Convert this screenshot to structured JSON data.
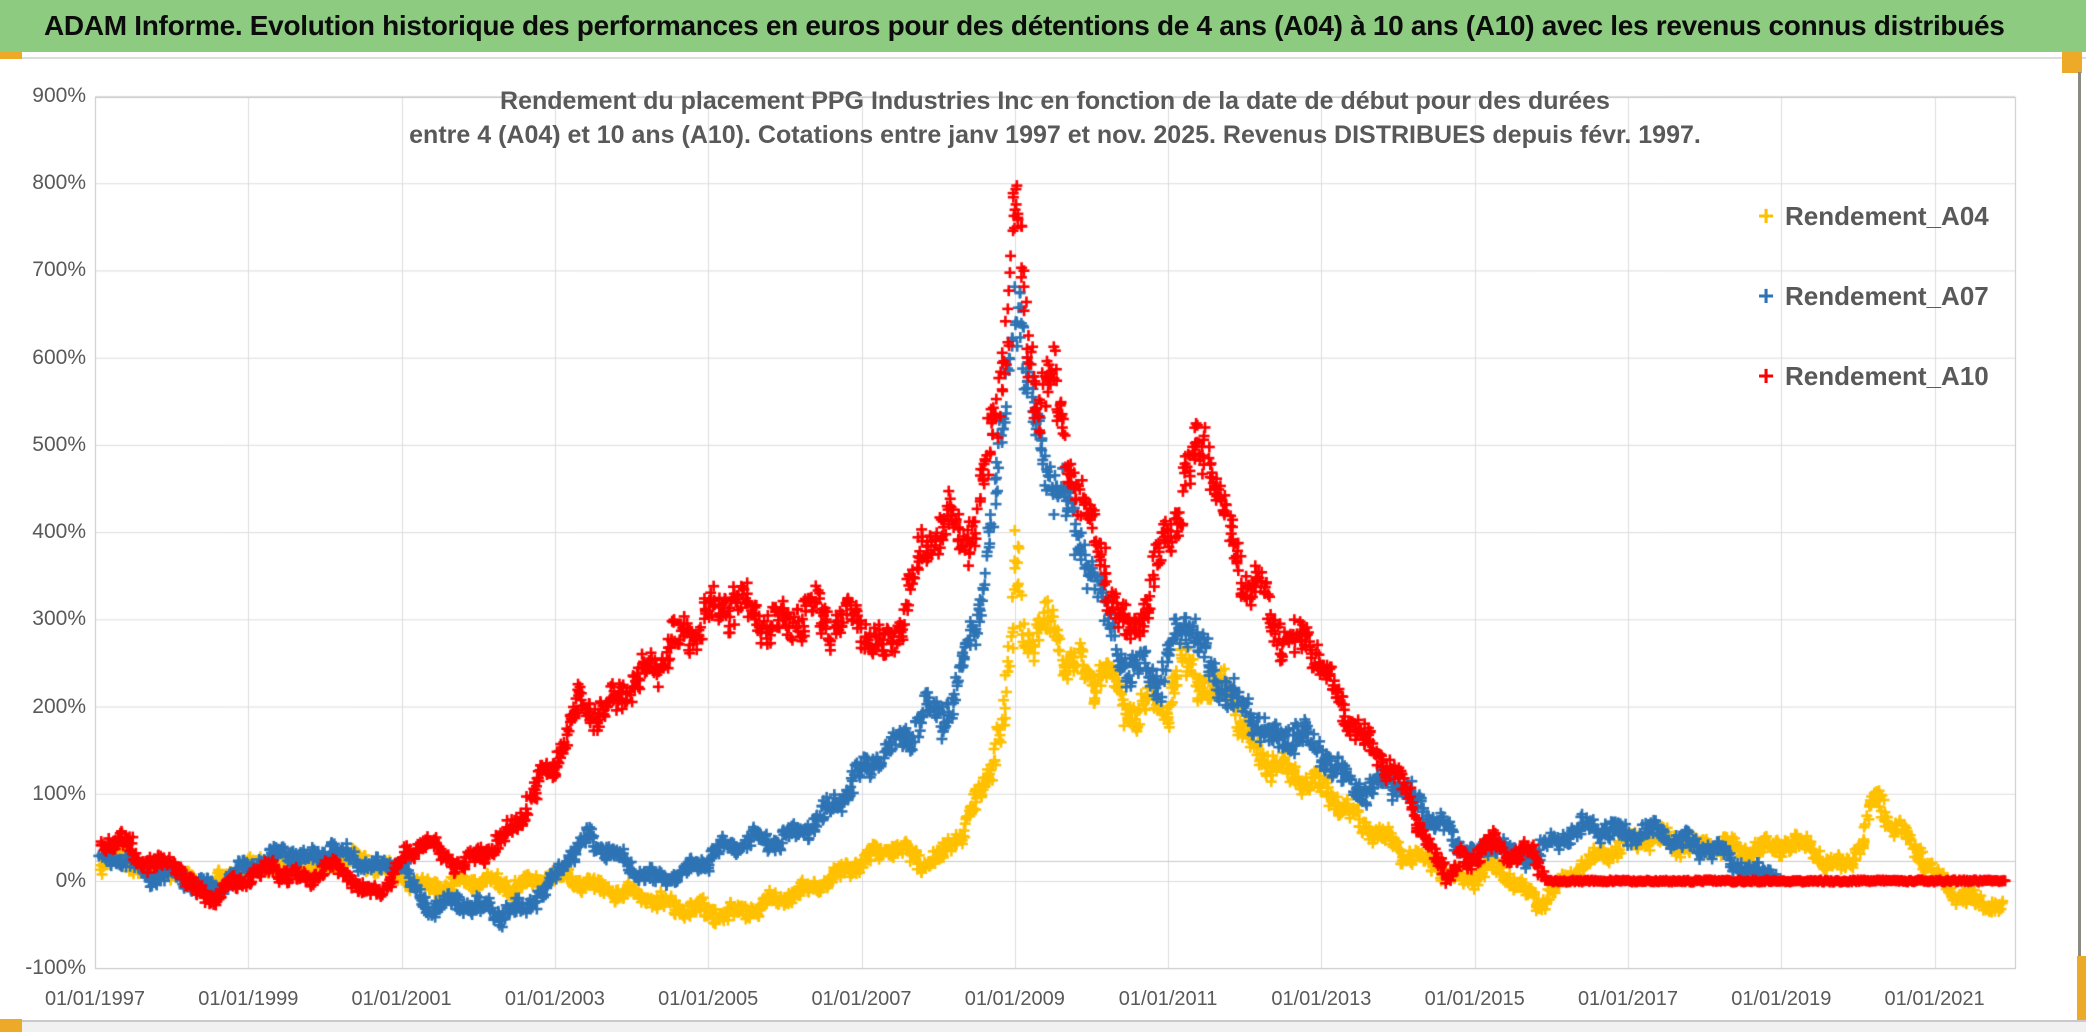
{
  "header": {
    "title": "ADAM Informe. Evolution historique des performances en euros pour des détentions de 4 ans (A04) à 10 ans (A10) avec les revenus connus distribués",
    "banner_color": "#8dcb80",
    "accent_color": "#eda928"
  },
  "chart_data": {
    "type": "scatter",
    "title_line1": "Rendement du placement PPG Industries Inc en fonction de la date de début pour des durées",
    "title_line2": "entre 4 (A04) et 10 ans (A10). Cotations entre janv 1997 et nov. 2025. Revenus DISTRIBUES depuis févr. 1997.",
    "xlabel": "",
    "ylabel": "",
    "x_tick_labels": [
      "01/01/1997",
      "01/01/1999",
      "01/01/2001",
      "01/01/2003",
      "01/01/2005",
      "01/01/2007",
      "01/01/2009",
      "01/01/2011",
      "01/01/2013",
      "01/01/2015",
      "01/01/2017",
      "01/01/2019",
      "01/01/2021"
    ],
    "y_tick_labels": [
      "900%",
      "800%",
      "700%",
      "600%",
      "500%",
      "400%",
      "300%",
      "200%",
      "100%",
      "0%",
      "-100%"
    ],
    "x_range_years": [
      1997.0,
      2022.05
    ],
    "ylim_pct": [
      -100,
      900
    ],
    "grid": true,
    "gridline_step_pct": 100,
    "reference_line_pct": 23,
    "marker": "plus",
    "legend_position": "right-overlay",
    "legend": [
      {
        "label": "Rendement_A04",
        "color": "#FFC000"
      },
      {
        "label": "Rendement_A07",
        "color": "#2E74B5"
      },
      {
        "label": "Rendement_A10",
        "color": "#FF0000"
      }
    ],
    "series": [
      {
        "name": "Rendement_A04",
        "color": "#FFC000",
        "start": 1997.08,
        "end": 2021.87,
        "keypoints": [
          [
            1997.1,
            20
          ],
          [
            1997.35,
            32
          ],
          [
            1997.6,
            12
          ],
          [
            1997.9,
            14
          ],
          [
            1998.2,
            2
          ],
          [
            1998.5,
            -6
          ],
          [
            1998.8,
            8
          ],
          [
            1999.1,
            18
          ],
          [
            1999.4,
            26
          ],
          [
            1999.7,
            12
          ],
          [
            2000.0,
            16
          ],
          [
            2000.3,
            28
          ],
          [
            2000.6,
            18
          ],
          [
            2000.9,
            12
          ],
          [
            2001.2,
            -4
          ],
          [
            2001.5,
            -8
          ],
          [
            2001.8,
            -2
          ],
          [
            2002.1,
            2
          ],
          [
            2002.4,
            -6
          ],
          [
            2002.7,
            -2
          ],
          [
            2003.0,
            6
          ],
          [
            2003.3,
            0
          ],
          [
            2003.6,
            -8
          ],
          [
            2003.9,
            -14
          ],
          [
            2004.2,
            -18
          ],
          [
            2004.5,
            -28
          ],
          [
            2004.8,
            -32
          ],
          [
            2005.1,
            -36
          ],
          [
            2005.4,
            -38
          ],
          [
            2005.7,
            -28
          ],
          [
            2006.0,
            -18
          ],
          [
            2006.3,
            -10
          ],
          [
            2006.6,
            2
          ],
          [
            2006.9,
            18
          ],
          [
            2007.2,
            32
          ],
          [
            2007.4,
            40
          ],
          [
            2007.6,
            30
          ],
          [
            2007.8,
            22
          ],
          [
            2008.0,
            25
          ],
          [
            2008.2,
            45
          ],
          [
            2008.4,
            70
          ],
          [
            2008.6,
            110
          ],
          [
            2008.75,
            150
          ],
          [
            2008.85,
            190
          ],
          [
            2008.95,
            260
          ],
          [
            2009.02,
            380
          ],
          [
            2009.1,
            310
          ],
          [
            2009.2,
            270
          ],
          [
            2009.35,
            288
          ],
          [
            2009.5,
            298
          ],
          [
            2009.65,
            258
          ],
          [
            2009.8,
            248
          ],
          [
            2010.0,
            228
          ],
          [
            2010.2,
            242
          ],
          [
            2010.4,
            205
          ],
          [
            2010.6,
            188
          ],
          [
            2010.8,
            212
          ],
          [
            2011.0,
            198
          ],
          [
            2011.2,
            252
          ],
          [
            2011.4,
            232
          ],
          [
            2011.6,
            212
          ],
          [
            2011.8,
            228
          ],
          [
            2012.0,
            162
          ],
          [
            2012.3,
            138
          ],
          [
            2012.6,
            122
          ],
          [
            2012.9,
            112
          ],
          [
            2013.2,
            92
          ],
          [
            2013.5,
            68
          ],
          [
            2013.8,
            52
          ],
          [
            2014.1,
            32
          ],
          [
            2014.4,
            22
          ],
          [
            2014.7,
            6
          ],
          [
            2015.0,
            2
          ],
          [
            2015.2,
            18
          ],
          [
            2015.45,
            6
          ],
          [
            2015.65,
            -12
          ],
          [
            2015.85,
            -26
          ],
          [
            2016.1,
            -6
          ],
          [
            2016.4,
            18
          ],
          [
            2016.7,
            32
          ],
          [
            2017.0,
            42
          ],
          [
            2017.3,
            50
          ],
          [
            2017.6,
            44
          ],
          [
            2017.9,
            38
          ],
          [
            2018.2,
            42
          ],
          [
            2018.5,
            34
          ],
          [
            2018.8,
            38
          ],
          [
            2019.1,
            42
          ],
          [
            2019.4,
            40
          ],
          [
            2019.6,
            18
          ],
          [
            2019.85,
            22
          ],
          [
            2020.05,
            40
          ],
          [
            2020.2,
            95
          ],
          [
            2020.28,
            100
          ],
          [
            2020.4,
            70
          ],
          [
            2020.6,
            52
          ],
          [
            2020.8,
            34
          ],
          [
            2021.0,
            8
          ],
          [
            2021.2,
            -10
          ],
          [
            2021.4,
            -20
          ],
          [
            2021.6,
            -24
          ],
          [
            2021.87,
            -30
          ]
        ]
      },
      {
        "name": "Rendement_A07",
        "color": "#2E74B5",
        "start": 1997.08,
        "end": 2018.92,
        "keypoints": [
          [
            1997.1,
            22
          ],
          [
            1997.4,
            28
          ],
          [
            1997.7,
            4
          ],
          [
            1998.0,
            10
          ],
          [
            1998.3,
            -4
          ],
          [
            1998.6,
            -10
          ],
          [
            1998.9,
            12
          ],
          [
            1999.2,
            24
          ],
          [
            1999.5,
            34
          ],
          [
            1999.8,
            24
          ],
          [
            2000.1,
            38
          ],
          [
            2000.4,
            24
          ],
          [
            2000.7,
            16
          ],
          [
            2001.0,
            22
          ],
          [
            2001.2,
            -18
          ],
          [
            2001.4,
            -30
          ],
          [
            2001.7,
            -24
          ],
          [
            2002.0,
            -30
          ],
          [
            2002.3,
            -38
          ],
          [
            2002.6,
            -30
          ],
          [
            2002.9,
            -8
          ],
          [
            2003.2,
            32
          ],
          [
            2003.45,
            48
          ],
          [
            2003.7,
            36
          ],
          [
            2004.0,
            14
          ],
          [
            2004.3,
            2
          ],
          [
            2004.6,
            6
          ],
          [
            2004.9,
            20
          ],
          [
            2005.2,
            38
          ],
          [
            2005.5,
            48
          ],
          [
            2005.8,
            44
          ],
          [
            2006.1,
            52
          ],
          [
            2006.4,
            66
          ],
          [
            2006.7,
            92
          ],
          [
            2007.0,
            122
          ],
          [
            2007.3,
            148
          ],
          [
            2007.6,
            168
          ],
          [
            2007.9,
            196
          ],
          [
            2008.1,
            186
          ],
          [
            2008.3,
            240
          ],
          [
            2008.5,
            300
          ],
          [
            2008.65,
            380
          ],
          [
            2008.8,
            470
          ],
          [
            2008.9,
            560
          ],
          [
            2008.98,
            650
          ],
          [
            2009.03,
            700
          ],
          [
            2009.1,
            620
          ],
          [
            2009.2,
            545
          ],
          [
            2009.35,
            495
          ],
          [
            2009.5,
            462
          ],
          [
            2009.7,
            420
          ],
          [
            2009.9,
            382
          ],
          [
            2010.1,
            330
          ],
          [
            2010.3,
            272
          ],
          [
            2010.5,
            232
          ],
          [
            2010.7,
            252
          ],
          [
            2010.9,
            225
          ],
          [
            2011.1,
            278
          ],
          [
            2011.25,
            305
          ],
          [
            2011.45,
            262
          ],
          [
            2011.65,
            230
          ],
          [
            2011.85,
            210
          ],
          [
            2012.1,
            188
          ],
          [
            2012.4,
            158
          ],
          [
            2012.7,
            172
          ],
          [
            2013.0,
            148
          ],
          [
            2013.3,
            118
          ],
          [
            2013.6,
            102
          ],
          [
            2013.9,
            118
          ],
          [
            2014.2,
            92
          ],
          [
            2014.5,
            68
          ],
          [
            2014.8,
            42
          ],
          [
            2015.05,
            28
          ],
          [
            2015.3,
            48
          ],
          [
            2015.6,
            22
          ],
          [
            2015.9,
            38
          ],
          [
            2016.2,
            52
          ],
          [
            2016.5,
            62
          ],
          [
            2016.8,
            58
          ],
          [
            2017.1,
            52
          ],
          [
            2017.4,
            58
          ],
          [
            2017.7,
            44
          ],
          [
            2018.0,
            38
          ],
          [
            2018.3,
            28
          ],
          [
            2018.6,
            8
          ],
          [
            2018.92,
            14
          ]
        ]
      },
      {
        "name": "Rendement_A10",
        "color": "#FF0000",
        "start": 1997.08,
        "end": 2015.9,
        "flat_segment": {
          "from": 2015.92,
          "to": 2021.92,
          "value": 0
        },
        "keypoints": [
          [
            1997.1,
            42
          ],
          [
            1997.3,
            52
          ],
          [
            1997.55,
            28
          ],
          [
            1997.8,
            18
          ],
          [
            1998.05,
            22
          ],
          [
            1998.3,
            -12
          ],
          [
            1998.55,
            -18
          ],
          [
            1998.8,
            -6
          ],
          [
            1999.05,
            8
          ],
          [
            1999.3,
            16
          ],
          [
            1999.55,
            6
          ],
          [
            1999.8,
            2
          ],
          [
            2000.05,
            18
          ],
          [
            2000.3,
            8
          ],
          [
            2000.55,
            -16
          ],
          [
            2000.8,
            -4
          ],
          [
            2001.05,
            28
          ],
          [
            2001.3,
            48
          ],
          [
            2001.55,
            28
          ],
          [
            2001.8,
            18
          ],
          [
            2002.05,
            32
          ],
          [
            2002.35,
            48
          ],
          [
            2002.65,
            88
          ],
          [
            2002.9,
            128
          ],
          [
            2003.1,
            152
          ],
          [
            2003.35,
            210
          ],
          [
            2003.6,
            185
          ],
          [
            2003.85,
            215
          ],
          [
            2004.1,
            228
          ],
          [
            2004.35,
            252
          ],
          [
            2004.6,
            275
          ],
          [
            2004.85,
            292
          ],
          [
            2005.1,
            312
          ],
          [
            2005.35,
            322
          ],
          [
            2005.6,
            305
          ],
          [
            2005.85,
            290
          ],
          [
            2006.1,
            302
          ],
          [
            2006.35,
            312
          ],
          [
            2006.6,
            295
          ],
          [
            2006.85,
            305
          ],
          [
            2007.1,
            288
          ],
          [
            2007.3,
            258
          ],
          [
            2007.5,
            295
          ],
          [
            2007.7,
            352
          ],
          [
            2007.9,
            395
          ],
          [
            2008.1,
            415
          ],
          [
            2008.3,
            388
          ],
          [
            2008.5,
            420
          ],
          [
            2008.65,
            475
          ],
          [
            2008.8,
            555
          ],
          [
            2008.9,
            645
          ],
          [
            2008.98,
            760
          ],
          [
            2009.01,
            800
          ],
          [
            2009.06,
            720
          ],
          [
            2009.12,
            655
          ],
          [
            2009.2,
            590
          ],
          [
            2009.32,
            552
          ],
          [
            2009.45,
            588
          ],
          [
            2009.55,
            545
          ],
          [
            2009.7,
            498
          ],
          [
            2009.85,
            445
          ],
          [
            2010.0,
            408
          ],
          [
            2010.15,
            372
          ],
          [
            2010.3,
            312
          ],
          [
            2010.45,
            282
          ],
          [
            2010.6,
            298
          ],
          [
            2010.75,
            322
          ],
          [
            2010.9,
            372
          ],
          [
            2011.05,
            408
          ],
          [
            2011.2,
            448
          ],
          [
            2011.35,
            482
          ],
          [
            2011.5,
            505
          ],
          [
            2011.62,
            455
          ],
          [
            2011.75,
            408
          ],
          [
            2011.9,
            372
          ],
          [
            2012.05,
            335
          ],
          [
            2012.2,
            342
          ],
          [
            2012.35,
            305
          ],
          [
            2012.5,
            278
          ],
          [
            2012.65,
            268
          ],
          [
            2012.8,
            285
          ],
          [
            2012.95,
            262
          ],
          [
            2013.1,
            225
          ],
          [
            2013.3,
            195
          ],
          [
            2013.5,
            168
          ],
          [
            2013.7,
            148
          ],
          [
            2013.9,
            128
          ],
          [
            2014.1,
            108
          ],
          [
            2014.3,
            62
          ],
          [
            2014.5,
            22
          ],
          [
            2014.65,
            5
          ],
          [
            2014.8,
            32
          ],
          [
            2014.95,
            12
          ],
          [
            2015.1,
            45
          ],
          [
            2015.25,
            52
          ],
          [
            2015.4,
            22
          ],
          [
            2015.55,
            35
          ],
          [
            2015.7,
            42
          ],
          [
            2015.82,
            15
          ],
          [
            2015.9,
            2
          ]
        ]
      }
    ]
  }
}
